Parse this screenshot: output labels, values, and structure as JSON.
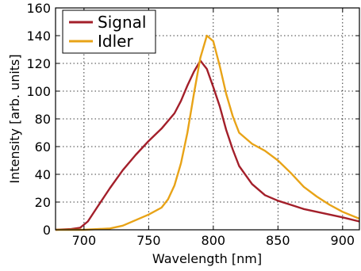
{
  "chart_data": {
    "type": "line",
    "title": "",
    "xlabel": "Wavelength [nm]",
    "ylabel": "Intensity [arb. units]",
    "xlim": [
      678,
      913
    ],
    "ylim": [
      0,
      160
    ],
    "xticks": [
      700,
      750,
      800,
      850,
      900
    ],
    "yticks": [
      0,
      20,
      40,
      60,
      80,
      100,
      120,
      140,
      160
    ],
    "grid": true,
    "legend_position": "top-left",
    "series": [
      {
        "name": "Signal",
        "color": "#a31f2a",
        "points": [
          [
            678,
            0
          ],
          [
            690,
            0.5
          ],
          [
            697,
            1.5
          ],
          [
            703,
            6
          ],
          [
            710,
            16
          ],
          [
            720,
            30
          ],
          [
            730,
            43
          ],
          [
            740,
            54
          ],
          [
            750,
            64
          ],
          [
            760,
            73
          ],
          [
            770,
            84
          ],
          [
            775,
            93
          ],
          [
            780,
            104
          ],
          [
            785,
            114
          ],
          [
            790,
            122
          ],
          [
            795,
            116
          ],
          [
            800,
            103
          ],
          [
            805,
            89
          ],
          [
            810,
            72
          ],
          [
            815,
            58
          ],
          [
            820,
            46
          ],
          [
            830,
            33
          ],
          [
            840,
            25
          ],
          [
            850,
            21
          ],
          [
            860,
            18
          ],
          [
            870,
            15
          ],
          [
            880,
            13
          ],
          [
            890,
            11
          ],
          [
            900,
            9
          ],
          [
            913,
            6
          ]
        ]
      },
      {
        "name": "Idler",
        "color": "#e8a317",
        "points": [
          [
            678,
            0
          ],
          [
            700,
            0
          ],
          [
            720,
            1
          ],
          [
            730,
            3
          ],
          [
            740,
            7
          ],
          [
            750,
            11
          ],
          [
            760,
            16
          ],
          [
            765,
            22
          ],
          [
            770,
            32
          ],
          [
            775,
            48
          ],
          [
            780,
            70
          ],
          [
            785,
            98
          ],
          [
            790,
            124
          ],
          [
            795,
            140
          ],
          [
            800,
            136
          ],
          [
            805,
            118
          ],
          [
            810,
            98
          ],
          [
            815,
            82
          ],
          [
            820,
            70
          ],
          [
            830,
            62
          ],
          [
            840,
            57
          ],
          [
            850,
            50
          ],
          [
            860,
            41
          ],
          [
            870,
            31
          ],
          [
            880,
            24
          ],
          [
            890,
            18
          ],
          [
            900,
            13
          ],
          [
            913,
            8
          ]
        ]
      }
    ]
  }
}
